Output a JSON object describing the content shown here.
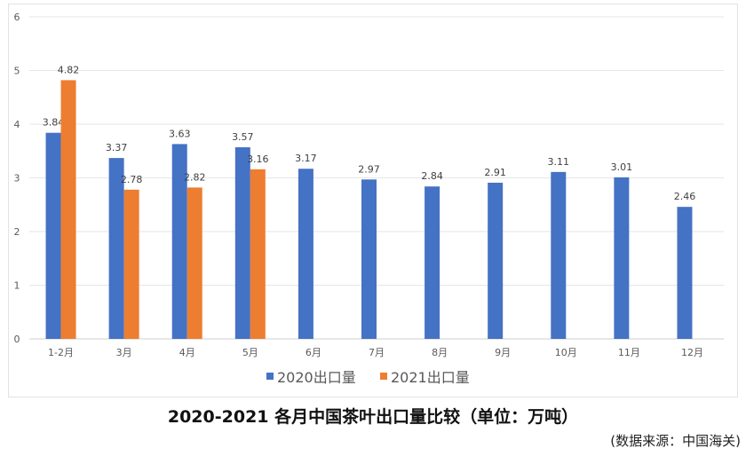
{
  "chart_data": {
    "type": "bar",
    "title": "2020-2021 各月中国茶叶出口量比较（单位：万吨）",
    "source": "(数据来源：中国海关)",
    "categories": [
      "1-2月",
      "3月",
      "4月",
      "5月",
      "6月",
      "7月",
      "8月",
      "9月",
      "10月",
      "11月",
      "12月"
    ],
    "series": [
      {
        "name": "2020出口量",
        "color": "#4472c4",
        "values": [
          3.84,
          3.37,
          3.63,
          3.57,
          3.17,
          2.97,
          2.84,
          2.91,
          3.11,
          3.01,
          2.46
        ]
      },
      {
        "name": "2021出口量",
        "color": "#ed7d31",
        "values": [
          4.82,
          2.78,
          2.82,
          3.16,
          null,
          null,
          null,
          null,
          null,
          null,
          null
        ]
      }
    ],
    "ylim": [
      0,
      6
    ],
    "yticks": [
      0,
      1,
      2,
      3,
      4,
      5,
      6
    ],
    "grid": true,
    "legend": "bottom"
  }
}
